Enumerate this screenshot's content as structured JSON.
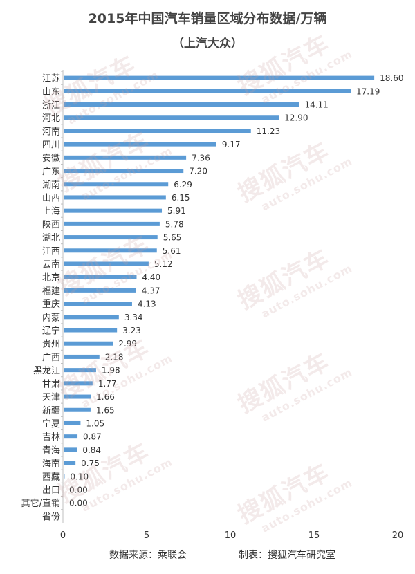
{
  "title": "2015年中国汽车销量区域分布数据/万辆",
  "subtitle": "（上汽大众）",
  "colors": {
    "bar": "#5b9bd5",
    "axis": "#bfbfbf",
    "text": "#333333",
    "watermark": "#c8a0a0"
  },
  "watermark": {
    "brand": "搜狐汽车",
    "domain": "auto.sohu.com"
  },
  "footer": {
    "source": "数据来源：乘联会",
    "maker": "制表：搜狐汽车研究室"
  },
  "chart_data": {
    "type": "bar",
    "orientation": "horizontal",
    "title": "2015年中国汽车销量区域分布数据/万辆",
    "subtitle": "（上汽大众）",
    "xlabel": "",
    "ylabel": "",
    "xlim": [
      0,
      20
    ],
    "xticks": [
      0,
      5,
      10,
      15,
      20
    ],
    "grid": false,
    "legend": "none",
    "categories": [
      "江苏",
      "山东",
      "浙江",
      "河北",
      "河南",
      "四川",
      "安徽",
      "广东",
      "湖南",
      "山西",
      "上海",
      "陕西",
      "湖北",
      "江西",
      "云南",
      "北京",
      "福建",
      "重庆",
      "内蒙",
      "辽宁",
      "贵州",
      "广西",
      "黑龙江",
      "甘肃",
      "天津",
      "新疆",
      "宁夏",
      "吉林",
      "青海",
      "海南",
      "西藏",
      "出口",
      "其它/直销",
      "省份"
    ],
    "values": [
      18.6,
      17.19,
      14.11,
      12.9,
      11.23,
      9.17,
      7.36,
      7.2,
      6.29,
      6.15,
      5.91,
      5.78,
      5.65,
      5.61,
      5.12,
      4.4,
      4.37,
      4.13,
      3.34,
      3.23,
      2.99,
      2.18,
      1.98,
      1.77,
      1.66,
      1.65,
      1.05,
      0.87,
      0.84,
      0.75,
      0.1,
      0.0,
      0.0,
      null
    ],
    "value_labels": [
      "18.60",
      "17.19",
      "14.11",
      "12.90",
      "11.23",
      "9.17",
      "7.36",
      "7.20",
      "6.29",
      "6.15",
      "5.91",
      "5.78",
      "5.65",
      "5.61",
      "5.12",
      "4.40",
      "4.37",
      "4.13",
      "3.34",
      "3.23",
      "2.99",
      "2.18",
      "1.98",
      "1.77",
      "1.66",
      "1.65",
      "1.05",
      "0.87",
      "0.84",
      "0.75",
      "0.10",
      "0.00",
      "0.00",
      ""
    ]
  }
}
